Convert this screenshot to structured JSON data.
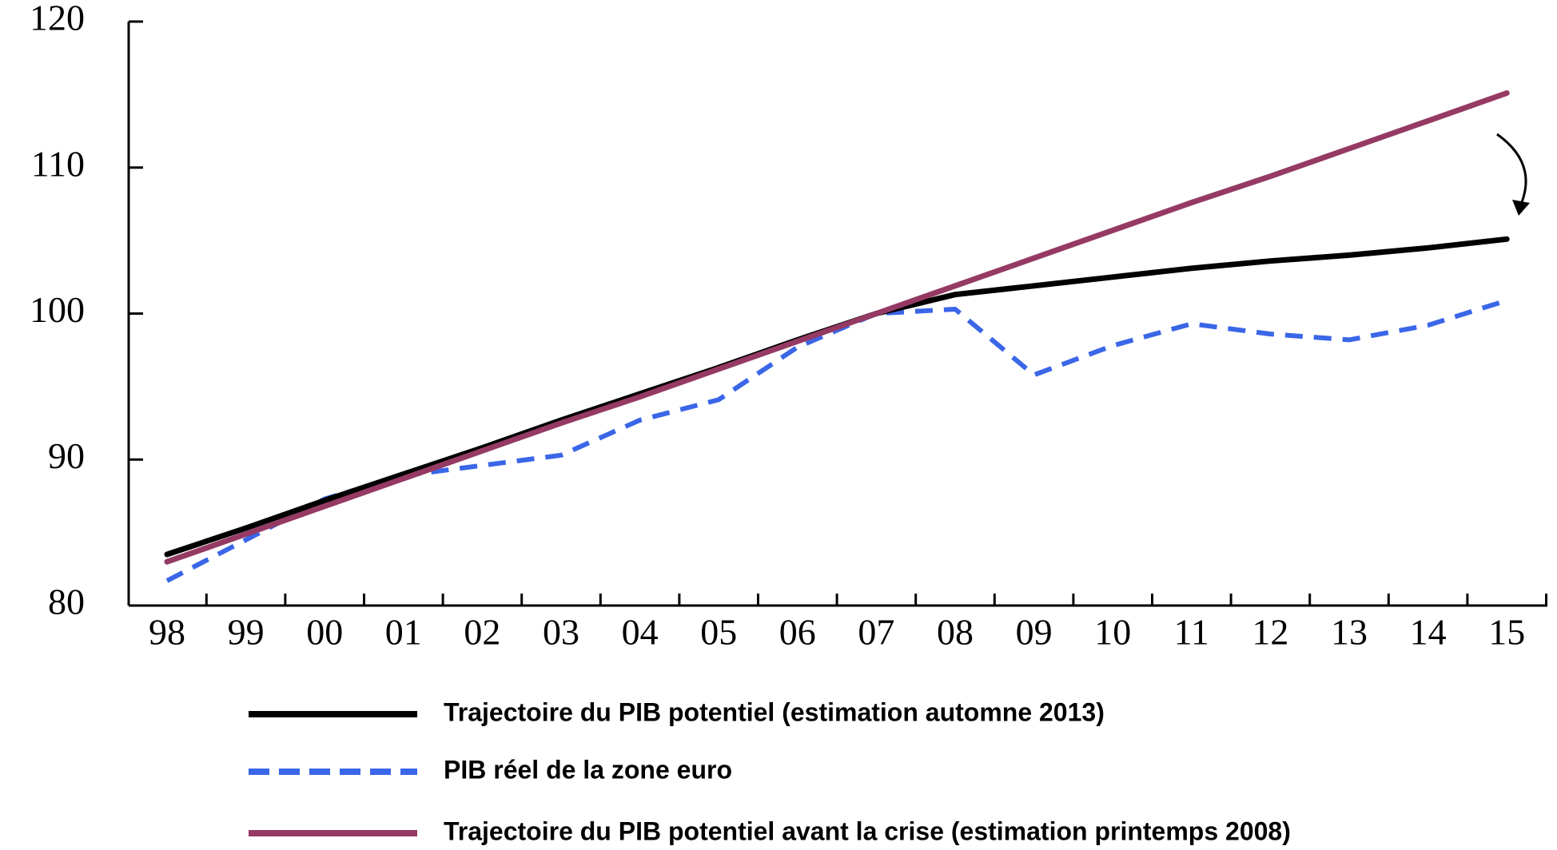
{
  "chart_data": {
    "type": "line",
    "categories": [
      "98",
      "99",
      "00",
      "01",
      "02",
      "03",
      "04",
      "05",
      "06",
      "07",
      "08",
      "09",
      "10",
      "11",
      "12",
      "13",
      "14",
      "15"
    ],
    "ylim": [
      80,
      120
    ],
    "yticks": [
      80,
      90,
      100,
      110,
      120
    ],
    "grid": false,
    "legend": "bottom",
    "series": [
      {
        "name": "Trajectoire du PIB potentiel (estimation automne 2013)",
        "color": "#000000",
        "dashed": false,
        "values": [
          83.5,
          85.3,
          87.2,
          89.0,
          90.8,
          92.7,
          94.5,
          96.3,
          98.2,
          100.0,
          101.3,
          101.9,
          102.5,
          103.1,
          103.6,
          104.0,
          104.5,
          105.1
        ]
      },
      {
        "name": "PIB réel de la zone euro",
        "color": "#3a66e8",
        "dashed": true,
        "values": [
          81.7,
          84.5,
          87.3,
          88.9,
          89.6,
          90.3,
          92.7,
          94.1,
          97.7,
          100.0,
          100.3,
          95.8,
          97.8,
          99.3,
          98.6,
          98.2,
          99.2,
          100.9
        ]
      },
      {
        "name": "Trajectoire du PIB potentiel avant la crise (estimation printemps 2008)",
        "color": "#953a64",
        "dashed": false,
        "values": [
          83.0,
          84.9,
          86.8,
          88.7,
          90.6,
          92.5,
          94.3,
          96.2,
          98.1,
          100.0,
          101.9,
          103.8,
          105.7,
          107.6,
          109.4,
          111.3,
          113.2,
          115.1
        ]
      }
    ]
  }
}
